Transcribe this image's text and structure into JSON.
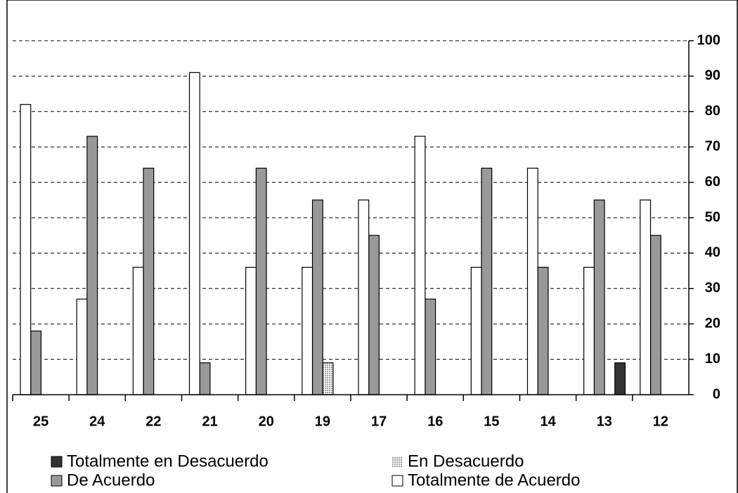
{
  "chart_data": {
    "type": "bar",
    "categories": [
      "25",
      "24",
      "22",
      "21",
      "20",
      "19",
      "17",
      "16",
      "15",
      "14",
      "13",
      "12"
    ],
    "series": [
      {
        "name": "Totalmente en Desacuerdo",
        "color": "#333333",
        "values": [
          0,
          0,
          0,
          0,
          0,
          0,
          0,
          0,
          0,
          0,
          9,
          0
        ]
      },
      {
        "name": "En Desacuerdo",
        "color": "#9a9a9a",
        "pattern": "dots",
        "values": [
          0,
          0,
          0,
          0,
          0,
          9,
          0,
          0,
          0,
          0,
          0,
          0
        ]
      },
      {
        "name": "De Acuerdo",
        "color": "#999999",
        "values": [
          18,
          73,
          64,
          9,
          64,
          55,
          45,
          27,
          64,
          36,
          55,
          45
        ]
      },
      {
        "name": "Totalmente de Acuerdo",
        "color": "#ffffff",
        "values": [
          82,
          27,
          36,
          91,
          36,
          36,
          55,
          73,
          36,
          64,
          36,
          55
        ]
      }
    ],
    "ylim": [
      0,
      100
    ],
    "yticks": [
      0,
      10,
      20,
      30,
      40,
      50,
      60,
      70,
      80,
      90,
      100
    ],
    "grid": true
  }
}
